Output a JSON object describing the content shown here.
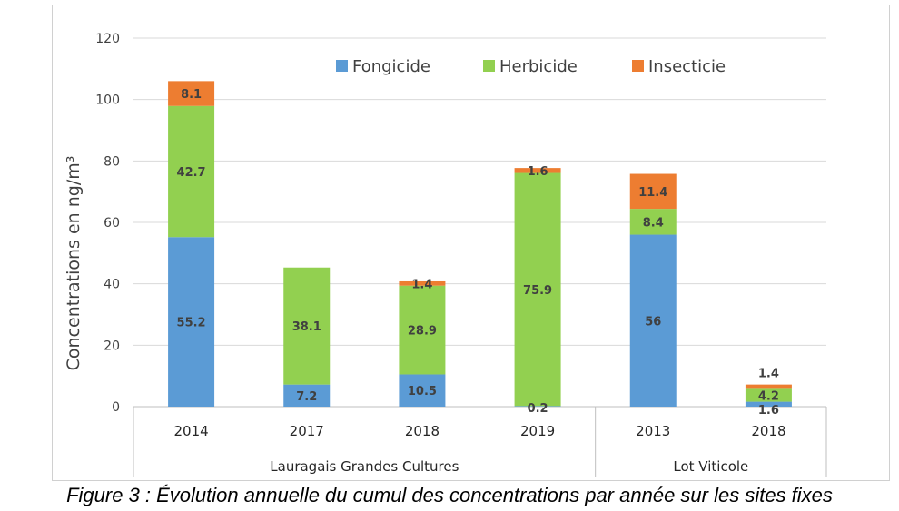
{
  "chart_data": {
    "type": "bar",
    "stacked": true,
    "ylabel": "Concentrations en ng/m³",
    "ylim": [
      0,
      120
    ],
    "yticks": [
      0,
      20,
      40,
      60,
      80,
      100,
      120
    ],
    "grid": true,
    "legend_position": "top-right",
    "categories": [
      "2014",
      "2017",
      "2018",
      "2019",
      "2013",
      "2018"
    ],
    "groups": [
      {
        "label": "Lauragais Grandes Cultures",
        "count": 4
      },
      {
        "label": "Lot Viticole",
        "count": 2
      }
    ],
    "series": [
      {
        "name": "Fongicide",
        "color": "#5b9bd5",
        "values": [
          55.2,
          7.2,
          10.5,
          0.2,
          56,
          1.6
        ]
      },
      {
        "name": "Herbicide",
        "color": "#92d050",
        "values": [
          42.7,
          38.1,
          28.9,
          75.9,
          8.4,
          4.2
        ]
      },
      {
        "name": "Insecticie",
        "color": "#ed7d31",
        "values": [
          8.1,
          0,
          1.4,
          1.6,
          11.4,
          1.4
        ]
      }
    ],
    "data_labels": [
      [
        "55.2",
        "42.7",
        "8.1"
      ],
      [
        "7.2",
        "38.1",
        ""
      ],
      [
        "10.5",
        "28.9",
        "1.4"
      ],
      [
        "0.2",
        "75.9",
        "1.6"
      ],
      [
        "56",
        "8.4",
        "11.4"
      ],
      [
        "1.6",
        "4.2",
        "1.4"
      ]
    ]
  },
  "caption": "Figure 3 : Évolution annuelle du cumul des concentrations par année sur les sites fixes"
}
